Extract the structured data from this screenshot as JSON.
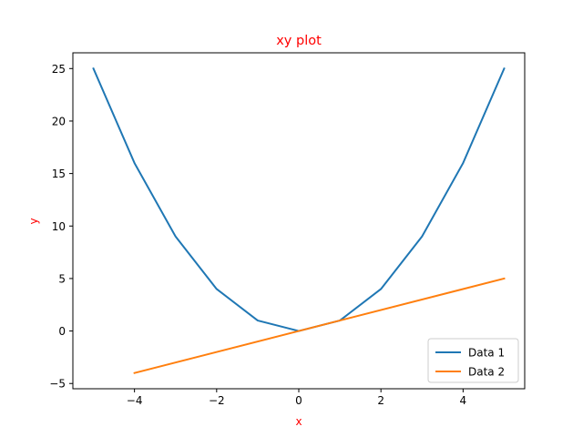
{
  "chart_data": {
    "type": "line",
    "title": "xy plot",
    "xlabel": "x",
    "ylabel": "y",
    "label_color": "#ff0000",
    "xlim": [
      -5.5,
      5.5
    ],
    "ylim": [
      -5.5,
      26.5
    ],
    "x_ticks": [
      -4,
      -2,
      0,
      2,
      4
    ],
    "x_tick_labels": [
      "−4",
      "−2",
      "0",
      "2",
      "4"
    ],
    "y_ticks": [
      -5,
      0,
      5,
      10,
      15,
      20,
      25
    ],
    "y_tick_labels": [
      "−5",
      "0",
      "5",
      "10",
      "15",
      "20",
      "25"
    ],
    "grid": false,
    "legend_position": "lower-right",
    "series": [
      {
        "name": "Data 1",
        "color": "#1f77b4",
        "x": [
          -5,
          -4,
          -3,
          -2,
          -1,
          0,
          1,
          2,
          3,
          4,
          5
        ],
        "y": [
          25,
          16,
          9,
          4,
          1,
          0,
          1,
          4,
          9,
          16,
          25
        ]
      },
      {
        "name": "Data 2",
        "color": "#ff7f0e",
        "x": [
          -4,
          5
        ],
        "y": [
          -4,
          5
        ]
      }
    ]
  }
}
